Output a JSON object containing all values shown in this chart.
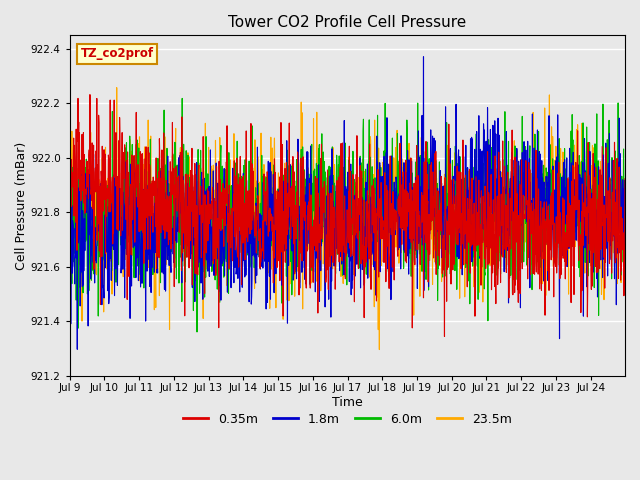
{
  "title": "Tower CO2 Profile Cell Pressure",
  "xlabel": "Time",
  "ylabel": "Cell Pressure (mBar)",
  "ylim": [
    921.2,
    922.45
  ],
  "yticks": [
    921.2,
    921.4,
    921.6,
    921.8,
    922.0,
    922.2,
    922.4
  ],
  "series_labels": [
    "0.35m",
    "1.8m",
    "6.0m",
    "23.5m"
  ],
  "series_colors": [
    "#dd0000",
    "#0000cc",
    "#00bb00",
    "#ffaa00"
  ],
  "annotation_text": "TZ_co2prof",
  "annotation_bg": "#ffffcc",
  "annotation_border": "#cc8800",
  "x_tick_labels": [
    "Jul 9",
    "Jul 10",
    "Jul 11",
    "Jul 12",
    "Jul 13",
    "Jul 14",
    "Jul 15",
    "Jul 16",
    "Jul 17",
    "Jul 18",
    "Jul 19",
    "Jul 20",
    "Jul 21",
    "Jul 22",
    "Jul 23",
    "Jul 24"
  ],
  "x_tick_positions": [
    0,
    96,
    192,
    288,
    384,
    480,
    576,
    672,
    768,
    864,
    960,
    1056,
    1152,
    1248,
    1344,
    1440
  ],
  "n_points": 1536,
  "base_value": 921.78,
  "noise_scale": 0.13,
  "background_color": "#e8e8e8",
  "plot_bg_color": "#e8e8e8",
  "grid_color": "#ffffff",
  "linewidth": 0.8
}
